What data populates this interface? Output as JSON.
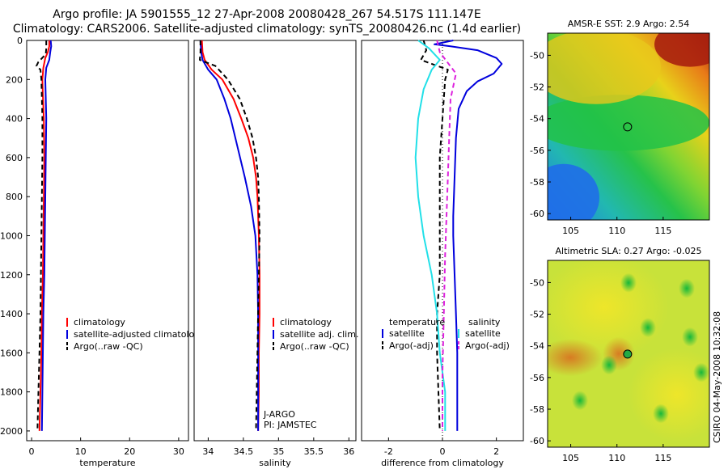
{
  "header": {
    "line1": "Argo profile: JA 5901555_12 27-Apr-2008 20080428_267 54.517S 111.147E",
    "line2": "Climatology: CARS2006. Satellite-adjusted climatology: synTS_20080426.nc (1.4d earlier)"
  },
  "footer": {
    "credit": "CSIRO 04-May-2008 10:32:08"
  },
  "colors": {
    "red": "#ff0000",
    "blue": "#0000dd",
    "black": "#000000",
    "cyan": "#22e0e8",
    "magenta": "#dd22dd"
  },
  "chart_data": [
    {
      "id": "temperature",
      "type": "line",
      "xlabel": "temperature",
      "ylabel": "",
      "xlim": [
        -1,
        32
      ],
      "ylim": [
        2050,
        0
      ],
      "xticks": [
        0,
        10,
        20,
        30
      ],
      "yticks": [
        0,
        200,
        400,
        600,
        800,
        1000,
        1200,
        1400,
        1600,
        1800,
        2000
      ],
      "legend": [
        "climatology",
        "satellite-adjusted climatology",
        "Argo(..raw -QC)"
      ],
      "legend_colors": [
        "red",
        "blue",
        "black"
      ],
      "legend_style": [
        "solid",
        "solid",
        "dash"
      ],
      "annotations": [],
      "series": [
        {
          "name": "climatology",
          "color": "red",
          "style": "solid",
          "points": [
            [
              3.6,
              0
            ],
            [
              3.6,
              30
            ],
            [
              3.3,
              60
            ],
            [
              2.8,
              90
            ],
            [
              2.4,
              140
            ],
            [
              2.2,
              200
            ],
            [
              2.3,
              280
            ],
            [
              2.5,
              400
            ],
            [
              2.6,
              600
            ],
            [
              2.5,
              800
            ],
            [
              2.4,
              1000
            ],
            [
              2.3,
              1200
            ],
            [
              2.1,
              1400
            ],
            [
              2.0,
              1600
            ],
            [
              1.8,
              1800
            ],
            [
              1.6,
              2000
            ]
          ]
        },
        {
          "name": "satellite-adjusted climatology",
          "color": "blue",
          "style": "solid",
          "points": [
            [
              3.9,
              0
            ],
            [
              4.0,
              30
            ],
            [
              3.8,
              60
            ],
            [
              3.6,
              100
            ],
            [
              3.0,
              140
            ],
            [
              2.8,
              200
            ],
            [
              2.9,
              300
            ],
            [
              3.0,
              400
            ],
            [
              2.9,
              600
            ],
            [
              2.8,
              800
            ],
            [
              2.7,
              1000
            ],
            [
              2.6,
              1200
            ],
            [
              2.4,
              1400
            ],
            [
              2.3,
              1600
            ],
            [
              2.2,
              1800
            ],
            [
              2.1,
              2000
            ]
          ]
        },
        {
          "name": "Argo(..raw -QC)",
          "color": "black",
          "style": "dash",
          "points": [
            [
              3.0,
              0
            ],
            [
              3.0,
              40
            ],
            [
              2.9,
              70
            ],
            [
              1.4,
              110
            ],
            [
              1.0,
              130
            ],
            [
              1.8,
              150
            ],
            [
              2.0,
              200
            ],
            [
              2.1,
              300
            ],
            [
              2.2,
              400
            ],
            [
              2.2,
              600
            ],
            [
              2.1,
              800
            ],
            [
              2.0,
              1000
            ],
            [
              1.9,
              1200
            ],
            [
              1.8,
              1400
            ],
            [
              1.6,
              1600
            ],
            [
              1.4,
              1800
            ],
            [
              1.2,
              2000
            ]
          ]
        }
      ]
    },
    {
      "id": "salinity",
      "type": "line",
      "xlabel": "salinity",
      "ylabel": "",
      "xlim": [
        33.8,
        36.1
      ],
      "ylim": [
        2050,
        0
      ],
      "xticks": [
        34,
        34.5,
        35,
        35.5,
        36
      ],
      "yticks": [],
      "legend": [
        "climatology",
        "satellite adj. clim.",
        "Argo(..raw -QC)"
      ],
      "legend_colors": [
        "red",
        "blue",
        "black"
      ],
      "legend_style": [
        "solid",
        "solid",
        "dash"
      ],
      "annotations": [
        "J-ARGO",
        "PI: JAMSTEC"
      ],
      "series": [
        {
          "name": "climatology",
          "color": "red",
          "style": "solid",
          "points": [
            [
              33.91,
              0
            ],
            [
              33.92,
              60
            ],
            [
              33.95,
              100
            ],
            [
              34.05,
              150
            ],
            [
              34.2,
              200
            ],
            [
              34.36,
              300
            ],
            [
              34.47,
              400
            ],
            [
              34.57,
              500
            ],
            [
              34.64,
              600
            ],
            [
              34.68,
              700
            ],
            [
              34.7,
              800
            ],
            [
              34.72,
              1000
            ],
            [
              34.73,
              1200
            ],
            [
              34.73,
              1400
            ],
            [
              34.72,
              1600
            ],
            [
              34.72,
              1800
            ],
            [
              34.71,
              2000
            ]
          ]
        },
        {
          "name": "satellite adj. clim.",
          "color": "blue",
          "style": "solid",
          "points": [
            [
              33.89,
              0
            ],
            [
              33.9,
              60
            ],
            [
              33.92,
              100
            ],
            [
              34.0,
              150
            ],
            [
              34.12,
              200
            ],
            [
              34.23,
              300
            ],
            [
              34.32,
              400
            ],
            [
              34.42,
              550
            ],
            [
              34.52,
              700
            ],
            [
              34.61,
              850
            ],
            [
              34.67,
              1000
            ],
            [
              34.7,
              1200
            ],
            [
              34.71,
              1400
            ],
            [
              34.71,
              1600
            ],
            [
              34.71,
              1800
            ],
            [
              34.71,
              2000
            ]
          ]
        },
        {
          "name": "Argo(..raw -QC)",
          "color": "black",
          "style": "dash",
          "points": [
            [
              33.89,
              0
            ],
            [
              33.89,
              60
            ],
            [
              33.88,
              100
            ],
            [
              34.1,
              130
            ],
            [
              34.28,
              200
            ],
            [
              34.45,
              300
            ],
            [
              34.55,
              400
            ],
            [
              34.63,
              500
            ],
            [
              34.68,
              600
            ],
            [
              34.71,
              700
            ],
            [
              34.72,
              800
            ],
            [
              34.73,
              1000
            ],
            [
              34.72,
              1200
            ],
            [
              34.71,
              1400
            ],
            [
              34.7,
              1600
            ],
            [
              34.69,
              1800
            ],
            [
              34.68,
              2000
            ]
          ]
        }
      ]
    },
    {
      "id": "difference",
      "type": "line",
      "xlabel": "difference from climatology",
      "ylabel": "",
      "xlim": [
        -3,
        3
      ],
      "ylim": [
        2050,
        0
      ],
      "xticks": [
        -2,
        0,
        2
      ],
      "yticks": [],
      "legend_groups": [
        "temperature",
        "salinity"
      ],
      "legend": [
        "satellite",
        "Argo(-adj)",
        "satellite",
        "Argo(-adj)"
      ],
      "legend_colors": [
        "blue",
        "black",
        "cyan",
        "magenta"
      ],
      "legend_style": [
        "solid",
        "dash",
        "solid",
        "dash"
      ],
      "annotations": [],
      "series": [
        {
          "name": "temperature satellite",
          "color": "blue",
          "style": "solid",
          "points": [
            [
              0.4,
              0
            ],
            [
              -0.3,
              20
            ],
            [
              0.3,
              30
            ],
            [
              1.3,
              50
            ],
            [
              2.0,
              90
            ],
            [
              2.2,
              120
            ],
            [
              1.9,
              170
            ],
            [
              1.3,
              210
            ],
            [
              0.9,
              260
            ],
            [
              0.6,
              350
            ],
            [
              0.5,
              500
            ],
            [
              0.45,
              700
            ],
            [
              0.4,
              900
            ],
            [
              0.4,
              1000
            ],
            [
              0.45,
              1200
            ],
            [
              0.5,
              1400
            ],
            [
              0.55,
              1600
            ],
            [
              0.55,
              1800
            ],
            [
              0.55,
              2000
            ]
          ]
        },
        {
          "name": "temperature Argo(-adj)",
          "color": "black",
          "style": "dash",
          "points": [
            [
              -0.7,
              0
            ],
            [
              -0.6,
              50
            ],
            [
              -0.8,
              100
            ],
            [
              0.2,
              150
            ],
            [
              0.1,
              200
            ],
            [
              0.0,
              400
            ],
            [
              -0.1,
              600
            ],
            [
              -0.1,
              800
            ],
            [
              -0.1,
              1000
            ],
            [
              -0.1,
              1200
            ],
            [
              -0.2,
              1400
            ],
            [
              -0.2,
              1600
            ],
            [
              -0.15,
              1800
            ],
            [
              -0.1,
              2000
            ]
          ]
        },
        {
          "name": "salinity satellite",
          "color": "cyan",
          "style": "solid",
          "points": [
            [
              -0.9,
              0
            ],
            [
              -0.5,
              40
            ],
            [
              -0.1,
              100
            ],
            [
              -0.4,
              150
            ],
            [
              -0.7,
              250
            ],
            [
              -0.9,
              400
            ],
            [
              -1.0,
              600
            ],
            [
              -0.9,
              800
            ],
            [
              -0.7,
              1000
            ],
            [
              -0.4,
              1200
            ],
            [
              -0.2,
              1400
            ],
            [
              -0.1,
              1600
            ],
            [
              0.1,
              1800
            ],
            [
              0.1,
              2000
            ]
          ]
        },
        {
          "name": "salinity Argo(-adj)",
          "color": "magenta",
          "style": "dash",
          "points": [
            [
              -0.2,
              0
            ],
            [
              -0.1,
              60
            ],
            [
              0.5,
              170
            ],
            [
              0.3,
              300
            ],
            [
              0.25,
              500
            ],
            [
              0.2,
              700
            ],
            [
              0.15,
              900
            ],
            [
              0.1,
              1100
            ],
            [
              0.05,
              1400
            ],
            [
              0.0,
              1700
            ],
            [
              0.0,
              2000
            ]
          ]
        }
      ]
    },
    {
      "id": "sst_map",
      "type": "heatmap",
      "title": "AMSR-E SST: 2.9  Argo: 2.54",
      "xticks": [
        105,
        110,
        115
      ],
      "yticks": [
        -50,
        -52,
        -54,
        -56,
        -58,
        -60
      ],
      "xlim": [
        102.5,
        120
      ],
      "ylim": [
        -60.4,
        -48.6
      ],
      "marker": {
        "lon": 111.15,
        "lat": -54.52,
        "fill": "none"
      },
      "annotations": []
    },
    {
      "id": "sla_map",
      "type": "heatmap",
      "title": "Altimetric SLA: 0.27  Argo: -0.025",
      "xticks": [
        105,
        110,
        115
      ],
      "yticks": [
        -50,
        -52,
        -54,
        -56,
        -58,
        -60
      ],
      "xlim": [
        102.5,
        120
      ],
      "ylim": [
        -60.4,
        -48.6
      ],
      "marker": {
        "lon": 111.15,
        "lat": -54.52,
        "fill": "#22aa44"
      },
      "annotations": []
    }
  ]
}
